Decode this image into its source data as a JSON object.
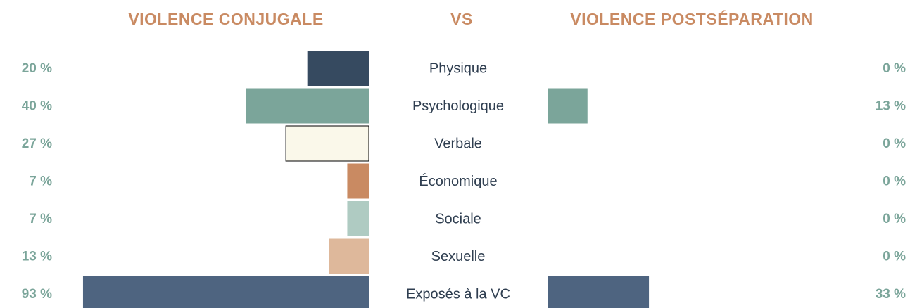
{
  "chart_data": {
    "type": "butterfly",
    "titles": [
      "VIOLENCE CONJUGALE",
      "VS",
      "VIOLENCE POSTSÉPARATION"
    ],
    "categories": [
      "Physique",
      "Psychologique",
      "Verbale",
      "Économique",
      "Sociale",
      "Sexuelle",
      "Exposés à la VC"
    ],
    "colors": [
      "#364a60",
      "#7ba59a",
      "#faf8ea",
      "#c98a62",
      "#afcbc2",
      "#deb89b",
      "#4e6480"
    ],
    "series": [
      {
        "name": "VIOLENCE CONJUGALE",
        "values": [
          20,
          40,
          27,
          7,
          7,
          13,
          93
        ],
        "value_labels": [
          "20 %",
          "40 %",
          "27 %",
          "7 %",
          "7 %",
          "13 %",
          "93 %"
        ]
      },
      {
        "name": "VIOLENCE POSTSÉPARATION",
        "values": [
          0,
          13,
          0,
          0,
          0,
          0,
          33
        ],
        "value_labels": [
          "0 %",
          "13 %",
          "0 %",
          "0 %",
          "0 %",
          "0 %",
          "33 %"
        ]
      }
    ]
  }
}
